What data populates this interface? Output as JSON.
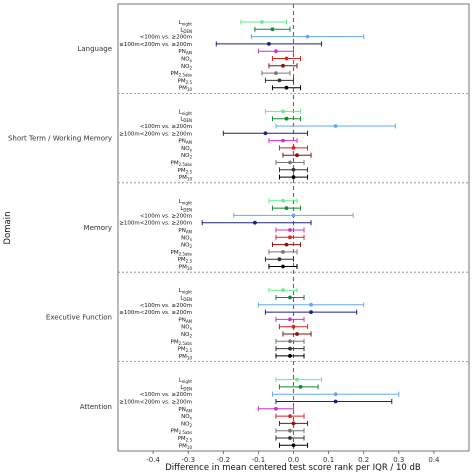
{
  "chart_data": {
    "type": "scatter",
    "subtype": "forest-plot",
    "title": "",
    "xlabel": "Difference in mean centered test score rank per IQR / 10 dB",
    "ylabel": "Domain",
    "xlim": [
      -0.5,
      0.5
    ],
    "xticks": [
      "-0.4",
      "-0.3",
      "-0.2",
      "-0.1",
      "0.0",
      "0.1",
      "0.2",
      "0.3",
      "0.4"
    ],
    "reference_line": 0,
    "grid": false,
    "exposures": [
      {
        "id": "lnight",
        "main": "L",
        "sub": "night",
        "tail": "",
        "color": "#66ee88"
      },
      {
        "id": "lden",
        "main": "L",
        "sub": "DEN",
        "tail": "",
        "color": "#118833"
      },
      {
        "id": "dist100",
        "main": "<100m vs. ≥200m",
        "sub": "",
        "tail": "",
        "color": "#66aaee"
      },
      {
        "id": "dist100200",
        "main": "≥100m<200m vs. ≥200m",
        "sub": "",
        "tail": "",
        "color": "#1a237e"
      },
      {
        "id": "pnam",
        "main": "PN",
        "sub": "AM",
        "tail": "",
        "color": "#cc33cc"
      },
      {
        "id": "nox",
        "main": "NO",
        "sub": "x",
        "tail": "",
        "color": "#dd2222"
      },
      {
        "id": "no2",
        "main": "NO",
        "sub": "2",
        "tail": "",
        "color": "#881111"
      },
      {
        "id": "pm25abs",
        "main": "PM",
        "sub": "2.5abs",
        "tail": "",
        "color": "#777777"
      },
      {
        "id": "pm25",
        "main": "PM",
        "sub": "2.5",
        "tail": "",
        "color": "#333333"
      },
      {
        "id": "pm10",
        "main": "PM",
        "sub": "10",
        "tail": "",
        "color": "#000000"
      }
    ],
    "domains": [
      {
        "name": "Language",
        "rows": [
          {
            "est": -0.09,
            "lo": -0.15,
            "hi": -0.02
          },
          {
            "est": -0.06,
            "lo": -0.11,
            "hi": -0.01
          },
          {
            "est": 0.04,
            "lo": -0.12,
            "hi": 0.2
          },
          {
            "est": -0.07,
            "lo": -0.22,
            "hi": 0.08
          },
          {
            "est": -0.05,
            "lo": -0.1,
            "hi": 0.0
          },
          {
            "est": -0.02,
            "lo": -0.06,
            "hi": 0.02
          },
          {
            "est": -0.03,
            "lo": -0.07,
            "hi": 0.01
          },
          {
            "est": -0.05,
            "lo": -0.09,
            "hi": -0.01
          },
          {
            "est": -0.04,
            "lo": -0.08,
            "hi": 0.0
          },
          {
            "est": -0.02,
            "lo": -0.06,
            "hi": 0.02
          }
        ]
      },
      {
        "name": "Short Term / Working Memory",
        "rows": [
          {
            "est": -0.03,
            "lo": -0.08,
            "hi": 0.02
          },
          {
            "est": -0.02,
            "lo": -0.06,
            "hi": 0.02
          },
          {
            "est": 0.12,
            "lo": -0.05,
            "hi": 0.29
          },
          {
            "est": -0.08,
            "lo": -0.2,
            "hi": 0.04
          },
          {
            "est": -0.03,
            "lo": -0.07,
            "hi": 0.01
          },
          {
            "est": 0.0,
            "lo": -0.04,
            "hi": 0.04
          },
          {
            "est": 0.01,
            "lo": -0.03,
            "hi": 0.05
          },
          {
            "est": -0.01,
            "lo": -0.05,
            "hi": 0.03
          },
          {
            "est": 0.0,
            "lo": -0.04,
            "hi": 0.04
          },
          {
            "est": 0.0,
            "lo": -0.04,
            "hi": 0.04
          }
        ]
      },
      {
        "name": "Memory",
        "rows": [
          {
            "est": -0.03,
            "lo": -0.07,
            "hi": 0.01
          },
          {
            "est": -0.02,
            "lo": -0.06,
            "hi": 0.02
          },
          {
            "est": 0.0,
            "lo": -0.17,
            "hi": 0.17
          },
          {
            "est": -0.11,
            "lo": -0.26,
            "hi": 0.05
          },
          {
            "est": -0.01,
            "lo": -0.05,
            "hi": 0.03
          },
          {
            "est": -0.01,
            "lo": -0.05,
            "hi": 0.03
          },
          {
            "est": -0.02,
            "lo": -0.06,
            "hi": 0.02
          },
          {
            "est": -0.03,
            "lo": -0.07,
            "hi": 0.01
          },
          {
            "est": -0.04,
            "lo": -0.08,
            "hi": 0.0
          },
          {
            "est": -0.03,
            "lo": -0.07,
            "hi": 0.01
          }
        ]
      },
      {
        "name": "Executive Function",
        "rows": [
          {
            "est": -0.03,
            "lo": -0.07,
            "hi": 0.01
          },
          {
            "est": -0.01,
            "lo": -0.05,
            "hi": 0.03
          },
          {
            "est": 0.05,
            "lo": -0.1,
            "hi": 0.2
          },
          {
            "est": 0.05,
            "lo": -0.08,
            "hi": 0.18
          },
          {
            "est": -0.01,
            "lo": -0.05,
            "hi": 0.03
          },
          {
            "est": 0.0,
            "lo": -0.04,
            "hi": 0.04
          },
          {
            "est": 0.01,
            "lo": -0.03,
            "hi": 0.05
          },
          {
            "est": -0.01,
            "lo": -0.05,
            "hi": 0.03
          },
          {
            "est": -0.01,
            "lo": -0.05,
            "hi": 0.03
          },
          {
            "est": -0.01,
            "lo": -0.05,
            "hi": 0.03
          }
        ]
      },
      {
        "name": "Attention",
        "rows": [
          {
            "est": 0.01,
            "lo": -0.05,
            "hi": 0.08
          },
          {
            "est": 0.02,
            "lo": -0.04,
            "hi": 0.07
          },
          {
            "est": 0.12,
            "lo": -0.06,
            "hi": 0.3
          },
          {
            "est": 0.12,
            "lo": -0.05,
            "hi": 0.28
          },
          {
            "est": -0.05,
            "lo": -0.1,
            "hi": 0.0
          },
          {
            "est": -0.01,
            "lo": -0.05,
            "hi": 0.03
          },
          {
            "est": 0.0,
            "lo": -0.04,
            "hi": 0.04
          },
          {
            "est": -0.01,
            "lo": -0.05,
            "hi": 0.03
          },
          {
            "est": -0.01,
            "lo": -0.05,
            "hi": 0.03
          },
          {
            "est": 0.0,
            "lo": -0.04,
            "hi": 0.04
          }
        ]
      }
    ]
  }
}
